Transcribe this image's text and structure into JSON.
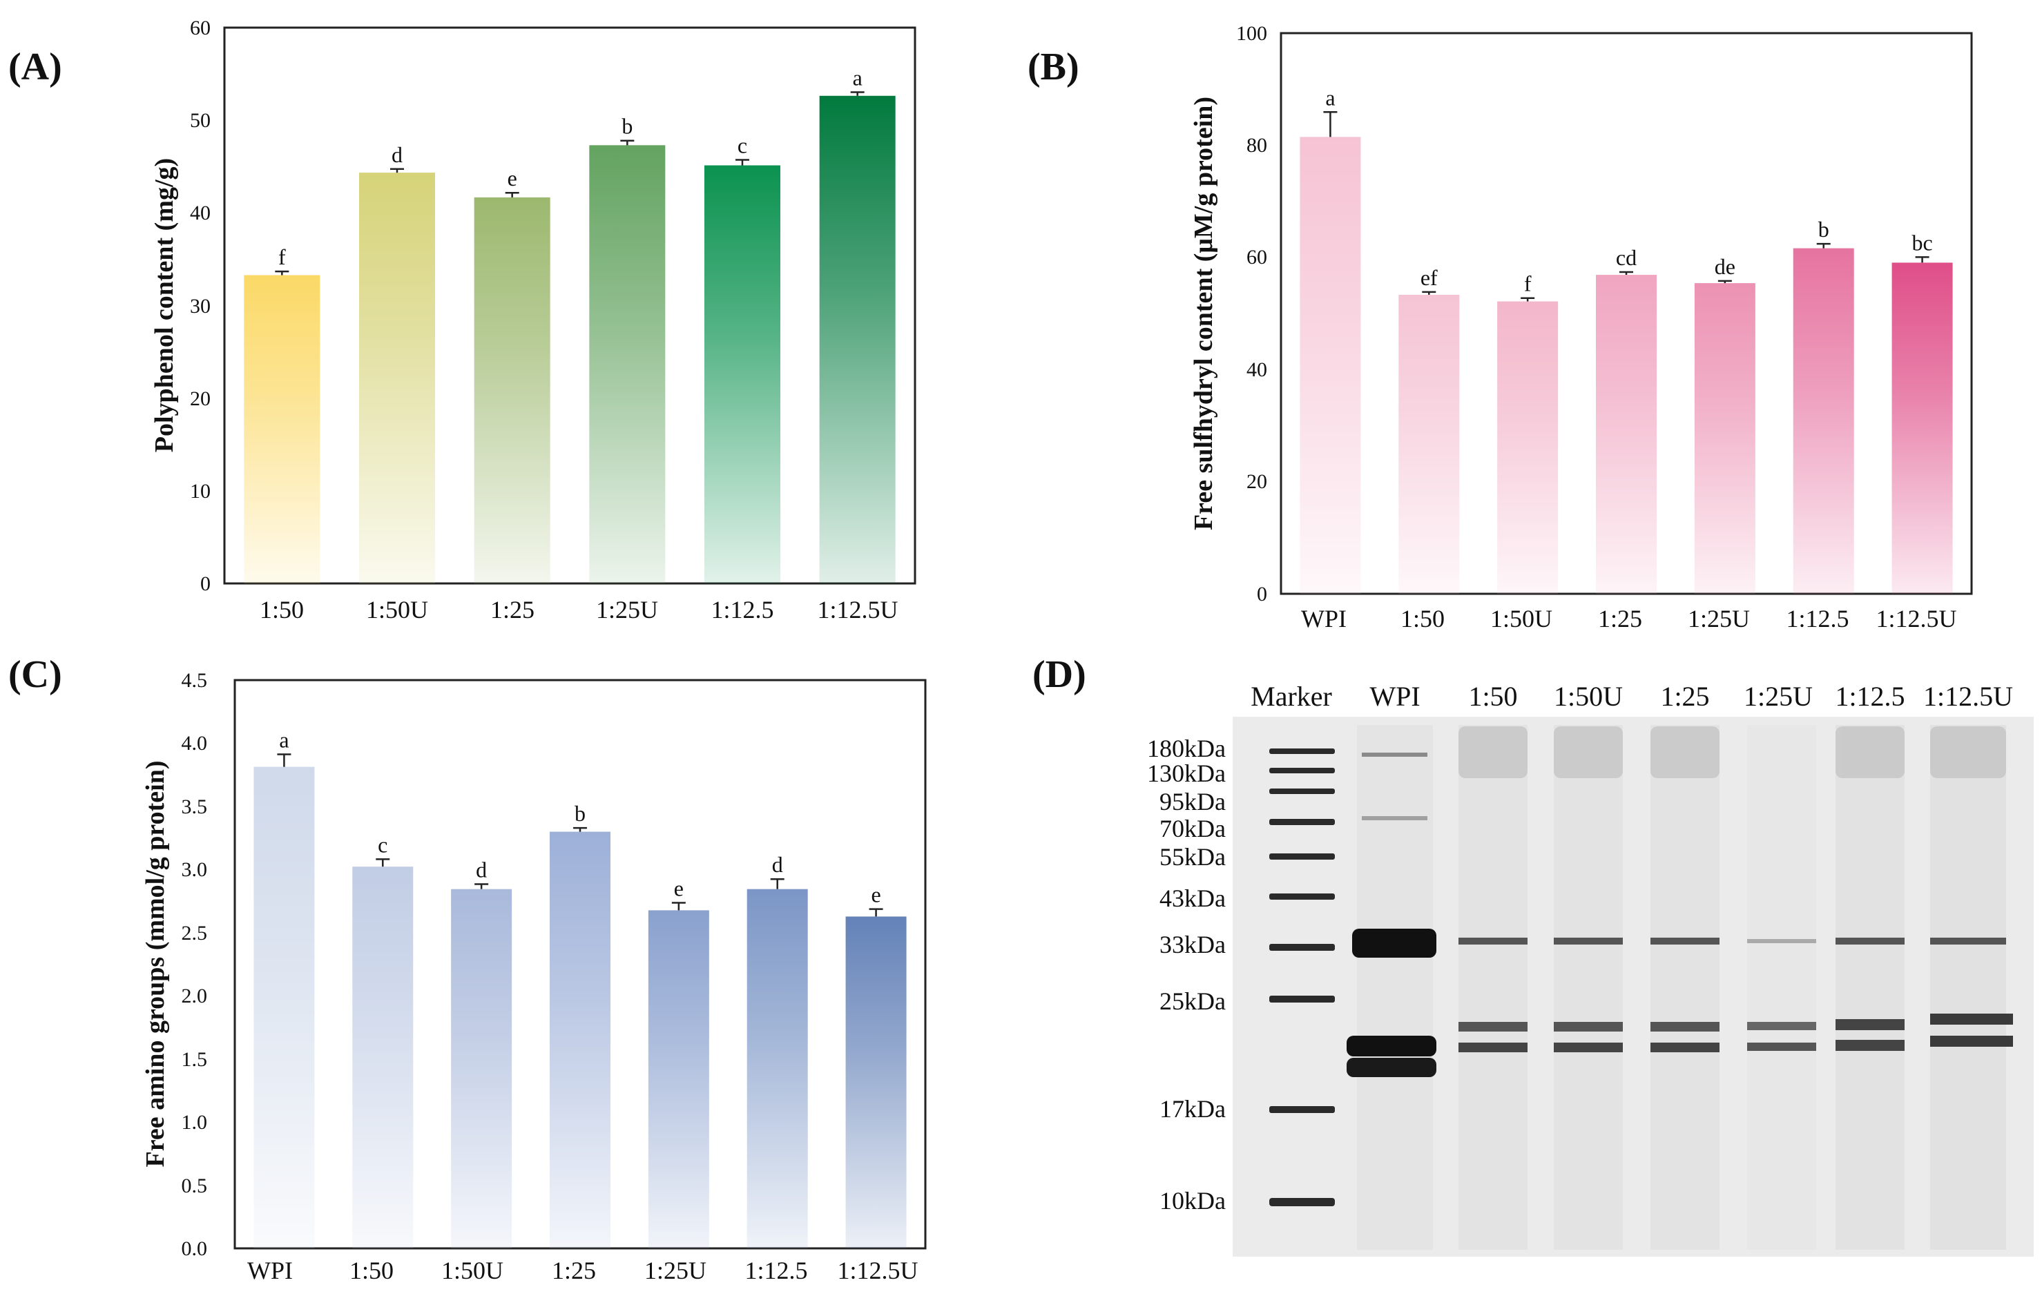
{
  "colors": {
    "A": [
      "#fbd967",
      "#d6d379",
      "#9cb86e",
      "#63a360",
      "#0b9250",
      "#017a3e"
    ],
    "B": [
      "#f6c3d4",
      "#f5c3d4",
      "#f3b6ca",
      "#f0a5c0",
      "#ec91b2",
      "#e673a0",
      "#df4e88"
    ],
    "C": [
      "#cfd9ea",
      "#c1cde5",
      "#a9b9db",
      "#9db0d8",
      "#8aa1ce",
      "#7b96c6",
      "#6482b8"
    ]
  },
  "chart_data": [
    {
      "type": "bar",
      "panel_label": "(A)",
      "categories": [
        "1:50",
        "1:50U",
        "1:25",
        "1:25U",
        "1:12.5",
        "1:12.5U"
      ],
      "values": [
        33.7,
        44.9,
        42.2,
        47.9,
        45.7,
        53.3
      ],
      "errors": [
        0.4,
        0.4,
        0.5,
        0.5,
        0.6,
        0.4
      ],
      "significance": [
        "f",
        "d",
        "e",
        "b",
        "c",
        "a"
      ],
      "ylabel": "Polyphenol content (mg/g)",
      "ylim": [
        0,
        60
      ],
      "yticks": [
        "0",
        "10",
        "20",
        "30",
        "40",
        "50",
        "60"
      ]
    },
    {
      "type": "bar",
      "panel_label": "(B)",
      "categories": [
        "WPI",
        "1:50",
        "1:50U",
        "1:25",
        "1:25U",
        "1:12.5",
        "1:12.5U"
      ],
      "values": [
        82.5,
        54.0,
        52.8,
        57.6,
        56.1,
        62.4,
        59.8
      ],
      "errors": [
        4.5,
        0.5,
        0.6,
        0.5,
        0.4,
        0.8,
        1.0
      ],
      "significance": [
        "a",
        "ef",
        "f",
        "cd",
        "de",
        "b",
        "bc"
      ],
      "ylabel": "Free sulfhydryl content (μM/g protein)",
      "ylim": [
        0,
        100
      ],
      "yticks": [
        "0",
        "20",
        "40",
        "60",
        "80",
        "100"
      ]
    },
    {
      "type": "bar",
      "panel_label": "(C)",
      "categories": [
        "WPI",
        "1:50",
        "1:50U",
        "1:25",
        "1:25U",
        "1:12.5",
        "1:12.5U"
      ],
      "values": [
        3.86,
        3.06,
        2.88,
        3.34,
        2.71,
        2.88,
        2.66
      ],
      "errors": [
        0.1,
        0.06,
        0.04,
        0.03,
        0.06,
        0.08,
        0.06
      ],
      "significance": [
        "a",
        "c",
        "d",
        "b",
        "e",
        "d",
        "e"
      ],
      "ylabel": "Free amino groups (mmol/g protein)",
      "ylim": [
        0,
        4.5
      ],
      "yticks": [
        "0.0",
        "0.5",
        "1.0",
        "1.5",
        "2.0",
        "2.5",
        "3.0",
        "3.5",
        "4.0",
        "4.5"
      ]
    }
  ],
  "gel": {
    "panel_label": "(D)",
    "lanes": [
      "Marker",
      "WPI",
      "1:50",
      "1:50U",
      "1:25",
      "1:25U",
      "1:12.5",
      "1:12.5U"
    ],
    "markers": [
      "180kDa",
      "130kDa",
      "95kDa",
      "70kDa",
      "55kDa",
      "43kDa",
      "33kDa",
      "25kDa",
      "17kDa",
      "10kDa"
    ]
  }
}
